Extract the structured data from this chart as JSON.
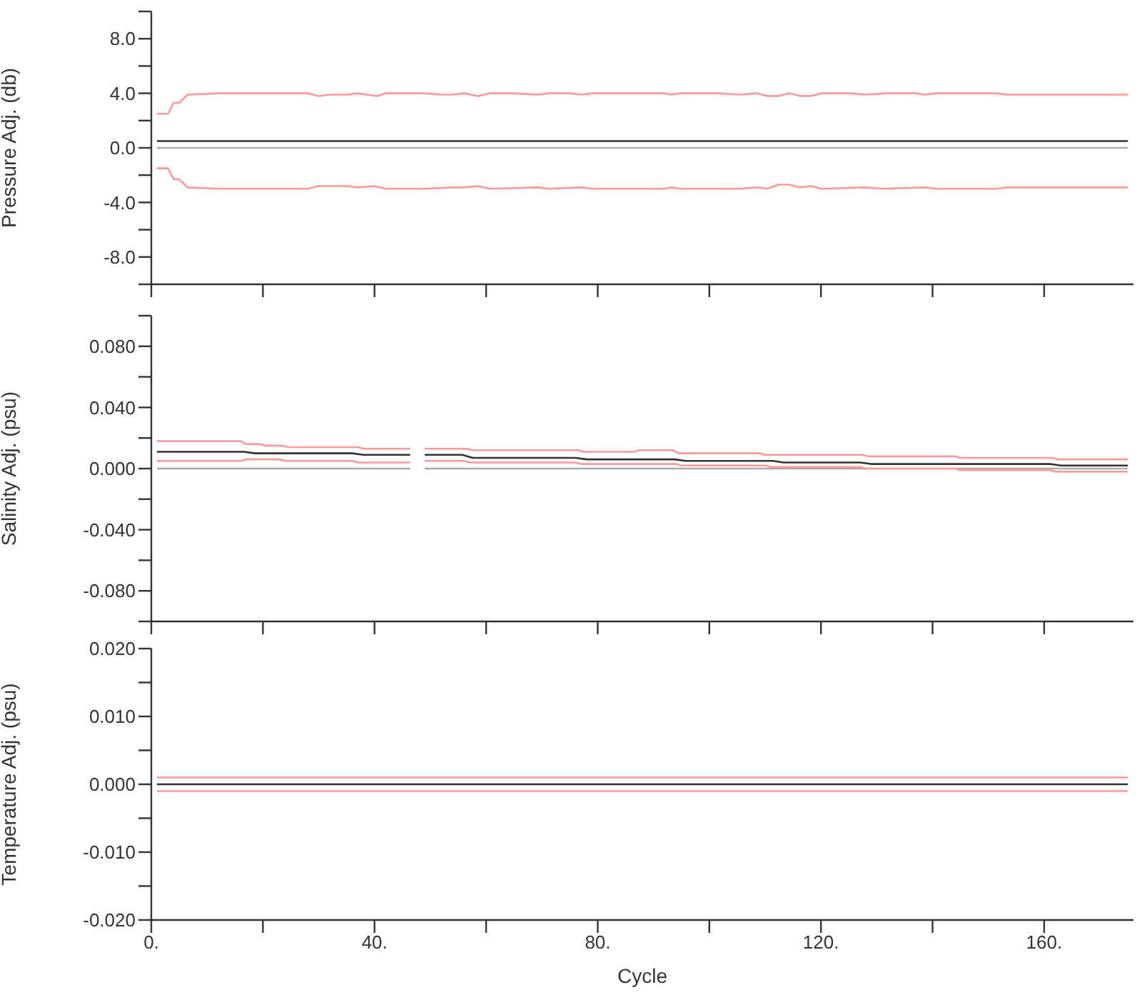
{
  "chart_data": [
    {
      "type": "line",
      "ylabel": "Pressure Adj. (db)",
      "xlim": [
        0,
        176
      ],
      "xticks": [
        {
          "value": 0,
          "label": null
        },
        {
          "value": 20,
          "label": null
        },
        {
          "value": 40,
          "label": null
        },
        {
          "value": 60,
          "label": null
        },
        {
          "value": 80,
          "label": null
        },
        {
          "value": 100,
          "label": null
        },
        {
          "value": 120,
          "label": null
        },
        {
          "value": 140,
          "label": null
        },
        {
          "value": 160,
          "label": null
        }
      ],
      "ylim": [
        -10,
        10
      ],
      "yticks": [
        {
          "value": -10,
          "label": null
        },
        {
          "value": -8,
          "label": "-8.0"
        },
        {
          "value": -6,
          "label": null
        },
        {
          "value": -4,
          "label": "-4.0"
        },
        {
          "value": -2,
          "label": null
        },
        {
          "value": 0,
          "label": "0.0"
        },
        {
          "value": 2,
          "label": null
        },
        {
          "value": 4,
          "label": "4.0"
        },
        {
          "value": 6,
          "label": null
        },
        {
          "value": 8,
          "label": "8.0"
        },
        {
          "value": 10,
          "label": null
        }
      ],
      "tick_labels": "y",
      "marker": "none",
      "series": [
        {
          "color": "#aaaaaa",
          "x": [
            1,
            175
          ],
          "values": [
            0,
            0
          ]
        },
        {
          "color": "#333333",
          "x": [
            1,
            175
          ],
          "values": [
            0.5,
            0.5
          ]
        },
        {
          "color": "#ff9999",
          "x": [
            1,
            3,
            4,
            5,
            6.5,
            12,
            20,
            28,
            30,
            32,
            35,
            37,
            38.6,
            40.5,
            42,
            49,
            52,
            54,
            56,
            58.6,
            60.6,
            64.5,
            69.4,
            71.3,
            75,
            77,
            79,
            92,
            93,
            95,
            101.6,
            105.5,
            108.5,
            110.4,
            112.4,
            114.3,
            116.3,
            118.2,
            120.2,
            125,
            128,
            132,
            137,
            138.7,
            140.7,
            151.4,
            153.4,
            155.3,
            162,
            175
          ],
          "values": [
            2.5,
            2.5,
            3.3,
            3.3,
            3.9,
            4.0,
            4.0,
            4.0,
            3.8,
            3.9,
            3.9,
            4.0,
            3.9,
            3.8,
            4.0,
            4.0,
            3.9,
            3.9,
            4.0,
            3.8,
            4.0,
            4.0,
            3.9,
            4.0,
            4.0,
            3.9,
            4.0,
            4.0,
            3.9,
            4.0,
            4.0,
            3.9,
            4.0,
            3.8,
            3.8,
            4.0,
            3.8,
            3.8,
            4.0,
            4.0,
            3.9,
            4.0,
            4.0,
            3.9,
            4.0,
            4.0,
            3.9,
            3.9,
            3.9,
            3.9
          ]
        },
        {
          "color": "#ff9999",
          "x": [
            1,
            3,
            4,
            5,
            6.5,
            12,
            28,
            30,
            35,
            37,
            40,
            42,
            49,
            54,
            56,
            58.6,
            60.6,
            69.4,
            71.3,
            77,
            79,
            92,
            93,
            95,
            105.5,
            108.5,
            110.4,
            112.4,
            114.3,
            116.3,
            118.2,
            120.2,
            128,
            131,
            138.7,
            140.7,
            151.4,
            153.4,
            155.3,
            162,
            175
          ],
          "values": [
            -1.5,
            -1.5,
            -2.3,
            -2.3,
            -2.9,
            -3.0,
            -3.0,
            -2.8,
            -2.8,
            -2.9,
            -2.8,
            -3.0,
            -3.0,
            -2.9,
            -2.9,
            -2.8,
            -3.0,
            -2.9,
            -3.0,
            -2.9,
            -3.0,
            -3.0,
            -2.9,
            -3.0,
            -3.0,
            -2.9,
            -3.0,
            -2.7,
            -2.7,
            -2.9,
            -2.8,
            -3.0,
            -2.9,
            -3.0,
            -2.9,
            -3.0,
            -3.0,
            -2.9,
            -2.9,
            -2.9,
            -2.9
          ]
        }
      ]
    },
    {
      "type": "line",
      "ylabel": "Salinity Adj. (psu)",
      "xlim": [
        0,
        176
      ],
      "xticks": [
        {
          "value": 0,
          "label": null
        },
        {
          "value": 20,
          "label": null
        },
        {
          "value": 40,
          "label": null
        },
        {
          "value": 60,
          "label": null
        },
        {
          "value": 80,
          "label": null
        },
        {
          "value": 100,
          "label": null
        },
        {
          "value": 120,
          "label": null
        },
        {
          "value": 140,
          "label": null
        },
        {
          "value": 160,
          "label": null
        }
      ],
      "ylim": [
        -0.1,
        0.1
      ],
      "yticks": [
        {
          "value": -0.1,
          "label": null
        },
        {
          "value": -0.08,
          "label": "-0.080"
        },
        {
          "value": -0.06,
          "label": null
        },
        {
          "value": -0.04,
          "label": "-0.040"
        },
        {
          "value": -0.02,
          "label": null
        },
        {
          "value": 0,
          "label": "0.000"
        },
        {
          "value": 0.02,
          "label": null
        },
        {
          "value": 0.04,
          "label": "0.040"
        },
        {
          "value": 0.06,
          "label": null
        },
        {
          "value": 0.08,
          "label": "0.080"
        },
        {
          "value": 0.1,
          "label": null
        }
      ],
      "tick_labels": "y",
      "marker": "none",
      "series": [
        {
          "color": "#aaaaaa",
          "x": [
            1,
            46.4,
            47.5,
            49,
            175
          ],
          "values": [
            0,
            0,
            null,
            0,
            0
          ]
        },
        {
          "color": "#ff9999",
          "x": [
            1,
            16,
            17,
            23,
            24,
            36,
            37,
            46.4,
            47.5,
            49,
            56,
            57,
            76,
            77,
            94,
            95,
            110,
            111,
            127,
            128,
            144,
            145,
            161,
            162,
            175
          ],
          "values": [
            0.005,
            0.005,
            0.006,
            0.006,
            0.005,
            0.005,
            0.004,
            0.004,
            null,
            0.005,
            0.005,
            0.004,
            0.004,
            0.003,
            0.003,
            0.002,
            0.002,
            0.001,
            0.001,
            0,
            0,
            -0.001,
            -0.001,
            -0.002,
            -0.002
          ]
        },
        {
          "color": "#333333",
          "x": [
            1,
            16.6,
            18.5,
            36,
            38,
            46.4,
            47.5,
            49,
            55.7,
            57.6,
            76,
            78,
            93.8,
            95.7,
            111.4,
            113.3,
            127,
            129,
            143.6,
            145.6,
            161,
            163,
            175
          ],
          "values": [
            0.011,
            0.011,
            0.01,
            0.01,
            0.009,
            0.009,
            null,
            0.009,
            0.009,
            0.007,
            0.007,
            0.006,
            0.006,
            0.005,
            0.005,
            0.004,
            0.004,
            0.003,
            0.003,
            0.003,
            0.003,
            0.002,
            0.002
          ]
        },
        {
          "color": "#ff9999",
          "x": [
            1,
            16,
            17,
            19.5,
            20.5,
            23.5,
            24.5,
            37,
            38,
            46.4,
            47.5,
            49,
            56.5,
            57.5,
            76.5,
            77.5,
            86.5,
            87.5,
            93.5,
            94.5,
            109,
            110,
            127.5,
            128.5,
            144,
            145,
            161.5,
            162.5,
            175
          ],
          "values": [
            0.018,
            0.018,
            0.016,
            0.016,
            0.015,
            0.015,
            0.014,
            0.014,
            0.013,
            0.013,
            null,
            0.013,
            0.013,
            0.012,
            0.012,
            0.011,
            0.011,
            0.012,
            0.012,
            0.01,
            0.01,
            0.009,
            0.009,
            0.008,
            0.008,
            0.007,
            0.007,
            0.006,
            0.006
          ]
        }
      ]
    },
    {
      "type": "line",
      "ylabel": "Temperature Adj. (psu)",
      "xlabel": "Cycle",
      "xlim": [
        0,
        176
      ],
      "xticks": [
        {
          "value": 0,
          "label": "0."
        },
        {
          "value": 20,
          "label": null
        },
        {
          "value": 40,
          "label": "40."
        },
        {
          "value": 60,
          "label": null
        },
        {
          "value": 80,
          "label": "80."
        },
        {
          "value": 100,
          "label": null
        },
        {
          "value": 120,
          "label": "120."
        },
        {
          "value": 140,
          "label": null
        },
        {
          "value": 160,
          "label": "160."
        }
      ],
      "ylim": [
        -0.02,
        0.02
      ],
      "yticks": [
        {
          "value": -0.02,
          "label": "-0.020"
        },
        {
          "value": -0.015,
          "label": null
        },
        {
          "value": -0.01,
          "label": "-0.010"
        },
        {
          "value": -0.005,
          "label": null
        },
        {
          "value": 0,
          "label": "0.000"
        },
        {
          "value": 0.005,
          "label": null
        },
        {
          "value": 0.01,
          "label": "0.010"
        },
        {
          "value": 0.015,
          "label": null
        },
        {
          "value": 0.02,
          "label": "0.020"
        }
      ],
      "marker": "none",
      "series": [
        {
          "color": "#ff9999",
          "x": [
            1,
            175
          ],
          "values": [
            0.001,
            0.001
          ]
        },
        {
          "color": "#ff9999",
          "x": [
            1,
            175
          ],
          "values": [
            -0.001,
            -0.001
          ]
        },
        {
          "color": "#333333",
          "x": [
            1,
            175
          ],
          "values": [
            0,
            0
          ]
        }
      ]
    }
  ]
}
